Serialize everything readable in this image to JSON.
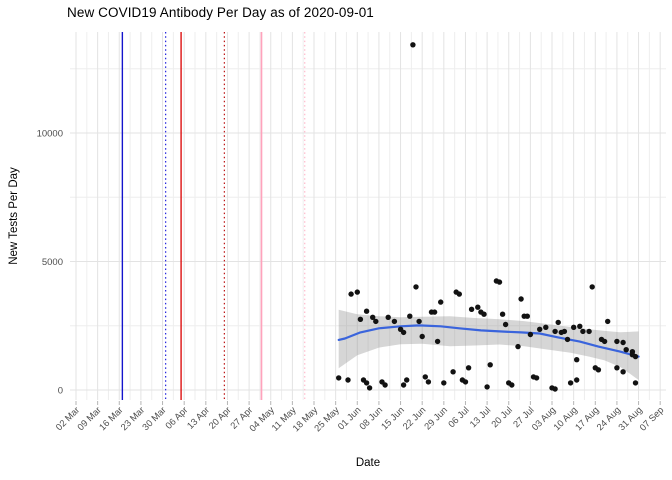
{
  "title": "New COVID19 Antibody Per Day as of 2020-09-01",
  "chart_data": {
    "type": "scatter",
    "title": "New COVID19 Antibody Per Day as of 2020-09-01",
    "xlabel": "Date",
    "ylabel": "New Tests Per Day",
    "legend": "none",
    "grid": true,
    "x_start_date": "2020-03-02",
    "x_end_date": "2020-09-07",
    "x_tick_interval_days": 7,
    "x_tick_labels": [
      "02 Mar",
      "09 Mar",
      "16 Mar",
      "23 Mar",
      "30 Mar",
      "06 Apr",
      "13 Apr",
      "20 Apr",
      "27 Apr",
      "04 May",
      "11 May",
      "18 May",
      "25 May",
      "01 Jun",
      "08 Jun",
      "15 Jun",
      "22 Jun",
      "29 Jun",
      "06 Jul",
      "13 Jul",
      "20 Jul",
      "27 Jul",
      "03 Aug",
      "10 Aug",
      "17 Aug",
      "24 Aug",
      "31 Aug",
      "07 Sep"
    ],
    "y_tick_labels": [
      "0",
      "5000",
      "10000"
    ],
    "y_major": [
      0,
      5000,
      10000
    ],
    "y_minor": [
      2500,
      7500,
      12500
    ],
    "ylim": [
      -700,
      14100
    ],
    "colors": {
      "point": "#121212",
      "smooth": "#3A64DC",
      "ribbon": "rgba(128,128,128,0.32)",
      "grid_major": "#E3E3E3",
      "grid_minor": "#EEEEEE",
      "tick_mark": "#B5B5B5",
      "tick_label": "#4D4D4D"
    },
    "vlines": [
      {
        "name": "blue-solid-vline",
        "date": "2020-03-17",
        "color": "#1414CC",
        "style": "solid",
        "width": 1.4
      },
      {
        "name": "blue-dotted-vline",
        "date": "2020-03-31",
        "color": "#2222DD",
        "style": "dotted",
        "width": 1.2
      },
      {
        "name": "red-solid-vline",
        "date": "2020-04-05",
        "color": "#DD1111",
        "style": "solid",
        "width": 1.4
      },
      {
        "name": "red-dotted-vline",
        "date": "2020-04-19",
        "color": "#BB1111",
        "style": "dotted",
        "width": 1.2
      },
      {
        "name": "pink-solid-vline",
        "date": "2020-05-01",
        "color": "#FFA3BC",
        "style": "solid",
        "width": 1.7
      },
      {
        "name": "pink-dotted-vline",
        "date": "2020-05-15",
        "color": "#FFBACC",
        "style": "dotted",
        "width": 1.2
      }
    ],
    "points": [
      [
        "2020-05-26",
        470
      ],
      [
        "2020-05-29",
        390
      ],
      [
        "2020-05-30",
        3730
      ],
      [
        "2020-06-01",
        3810
      ],
      [
        "2020-06-02",
        2750
      ],
      [
        "2020-06-03",
        390
      ],
      [
        "2020-06-04",
        275
      ],
      [
        "2020-06-04",
        3065
      ],
      [
        "2020-06-05",
        80
      ],
      [
        "2020-06-06",
        2830
      ],
      [
        "2020-06-07",
        2670
      ],
      [
        "2020-06-09",
        315
      ],
      [
        "2020-06-10",
        195
      ],
      [
        "2020-06-11",
        2830
      ],
      [
        "2020-06-13",
        2670
      ],
      [
        "2020-06-15",
        2360
      ],
      [
        "2020-06-16",
        2240
      ],
      [
        "2020-06-16",
        195
      ],
      [
        "2020-06-17",
        390
      ],
      [
        "2020-06-18",
        2870
      ],
      [
        "2020-06-19",
        13430
      ],
      [
        "2020-06-20",
        4010
      ],
      [
        "2020-06-21",
        2670
      ],
      [
        "2020-06-22",
        2080
      ],
      [
        "2020-06-23",
        510
      ],
      [
        "2020-06-24",
        315
      ],
      [
        "2020-06-25",
        3030
      ],
      [
        "2020-06-26",
        3030
      ],
      [
        "2020-06-27",
        1890
      ],
      [
        "2020-06-28",
        3420
      ],
      [
        "2020-06-29",
        275
      ],
      [
        "2020-07-02",
        710
      ],
      [
        "2020-07-03",
        3810
      ],
      [
        "2020-07-04",
        3730
      ],
      [
        "2020-07-05",
        390
      ],
      [
        "2020-07-06",
        315
      ],
      [
        "2020-07-07",
        865
      ],
      [
        "2020-07-08",
        3140
      ],
      [
        "2020-07-10",
        3220
      ],
      [
        "2020-07-11",
        3030
      ],
      [
        "2020-07-12",
        2950
      ],
      [
        "2020-07-13",
        120
      ],
      [
        "2020-07-14",
        980
      ],
      [
        "2020-07-16",
        4240
      ],
      [
        "2020-07-17",
        4200
      ],
      [
        "2020-07-18",
        2950
      ],
      [
        "2020-07-19",
        2550
      ],
      [
        "2020-07-20",
        275
      ],
      [
        "2020-07-21",
        195
      ],
      [
        "2020-07-23",
        1690
      ],
      [
        "2020-07-24",
        3540
      ],
      [
        "2020-07-25",
        2870
      ],
      [
        "2020-07-26",
        2870
      ],
      [
        "2020-07-27",
        2160
      ],
      [
        "2020-07-28",
        510
      ],
      [
        "2020-07-29",
        470
      ],
      [
        "2020-07-30",
        2360
      ],
      [
        "2020-08-01",
        2440
      ],
      [
        "2020-08-03",
        80
      ],
      [
        "2020-08-04",
        40
      ],
      [
        "2020-08-04",
        2280
      ],
      [
        "2020-08-05",
        2630
      ],
      [
        "2020-08-06",
        2240
      ],
      [
        "2020-08-07",
        2280
      ],
      [
        "2020-08-08",
        1970
      ],
      [
        "2020-08-09",
        275
      ],
      [
        "2020-08-10",
        2440
      ],
      [
        "2020-08-11",
        390
      ],
      [
        "2020-08-11",
        1180
      ],
      [
        "2020-08-12",
        2480
      ],
      [
        "2020-08-13",
        2280
      ],
      [
        "2020-08-15",
        2280
      ],
      [
        "2020-08-16",
        4010
      ],
      [
        "2020-08-17",
        865
      ],
      [
        "2020-08-18",
        785
      ],
      [
        "2020-08-19",
        1970
      ],
      [
        "2020-08-20",
        1890
      ],
      [
        "2020-08-21",
        2670
      ],
      [
        "2020-08-24",
        1890
      ],
      [
        "2020-08-24",
        865
      ],
      [
        "2020-08-26",
        1850
      ],
      [
        "2020-08-26",
        710
      ],
      [
        "2020-08-27",
        1570
      ],
      [
        "2020-08-29",
        1490
      ],
      [
        "2020-08-29",
        1375
      ],
      [
        "2020-08-30",
        1300
      ],
      [
        "2020-08-30",
        275
      ]
    ],
    "smooth": [
      [
        "2020-05-26",
        1950
      ],
      [
        "2020-05-28",
        2005
      ],
      [
        "2020-06-02",
        2240
      ],
      [
        "2020-06-08",
        2400
      ],
      [
        "2020-06-15",
        2480
      ],
      [
        "2020-06-21",
        2515
      ],
      [
        "2020-06-28",
        2480
      ],
      [
        "2020-07-04",
        2400
      ],
      [
        "2020-07-11",
        2320
      ],
      [
        "2020-07-17",
        2280
      ],
      [
        "2020-07-24",
        2240
      ],
      [
        "2020-07-30",
        2200
      ],
      [
        "2020-08-05",
        2045
      ],
      [
        "2020-08-12",
        1885
      ],
      [
        "2020-08-18",
        1690
      ],
      [
        "2020-08-25",
        1495
      ],
      [
        "2020-08-31",
        1300
      ]
    ],
    "ribbon": [
      [
        "2020-05-26",
        850,
        3120
      ],
      [
        "2020-06-01",
        1350,
        2950
      ],
      [
        "2020-06-08",
        1650,
        2870
      ],
      [
        "2020-06-15",
        1780,
        2830
      ],
      [
        "2020-06-22",
        1800,
        2850
      ],
      [
        "2020-07-01",
        1700,
        2870
      ],
      [
        "2020-07-09",
        1730,
        2800
      ],
      [
        "2020-07-17",
        1770,
        2750
      ],
      [
        "2020-07-25",
        1700,
        2680
      ],
      [
        "2020-08-02",
        1570,
        2560
      ],
      [
        "2020-08-09",
        1450,
        2450
      ],
      [
        "2020-08-15",
        1300,
        2360
      ],
      [
        "2020-08-20",
        1150,
        2300
      ],
      [
        "2020-08-25",
        900,
        2250
      ],
      [
        "2020-08-28",
        650,
        2260
      ],
      [
        "2020-08-31",
        390,
        2280
      ]
    ]
  }
}
